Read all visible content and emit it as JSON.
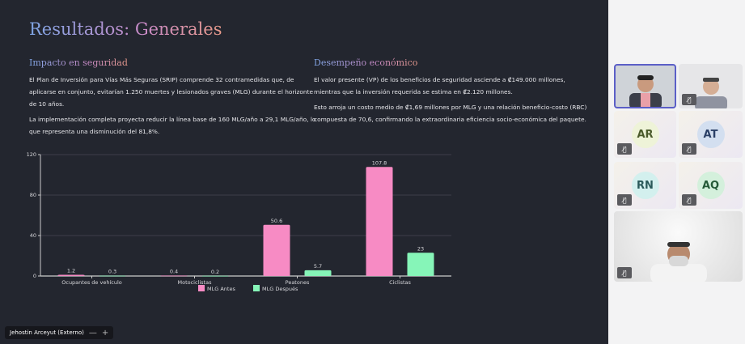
{
  "slide": {
    "title": "Resultados: Generales",
    "left": {
      "heading": "Impacto en seguridad",
      "p1": "El Plan de Inversión para Vías Más Seguras (SRIP) comprende 32 contramedidas que, de aplicarse en conjunto, evitarían 1.250 muertes y lesionados graves (MLG) durante el horizonte de 10 años.",
      "p2": "La implementación completa proyecta reducir la línea base de 160 MLG/año a 29,1 MLG/año, lo que representa una disminución del 81,8%."
    },
    "right": {
      "heading": "Desempeño económico",
      "p1": "El valor presente (VP) de los beneficios de seguridad asciende a ₡149.000 millones, mientras que la inversión requerida se estima en ₡2.120 millones.",
      "p2": "Esto arroja un costo medio de ₡1,69 millones por MLG y una relación beneficio-costo (RBC) compuesta de 70,6, confirmando la extraordinaria eficiencia socio-económica del paquete."
    }
  },
  "chart_data": {
    "type": "bar",
    "categories": [
      "Ocupantes de vehículo",
      "Motociclistas",
      "Peatones",
      "Ciclistas"
    ],
    "series": [
      {
        "name": "MLG Antes",
        "values": [
          1.2,
          0.4,
          50.6,
          107.8
        ],
        "color": "#f78bc4"
      },
      {
        "name": "MLG Después",
        "values": [
          0.3,
          0.2,
          5.7,
          23
        ],
        "color": "#86f5b8"
      }
    ],
    "yticks": [
      0,
      40,
      80,
      120
    ],
    "ylim": [
      0,
      120
    ],
    "grid": true,
    "legend": "bottom"
  },
  "meeting": {
    "presenter_name": "Jehostin Arceyut (Externo)",
    "minus": "—",
    "plus": "+",
    "participants": [
      {
        "initials": "AR",
        "bg": "#eef3d8",
        "fg": "#4a5a2a"
      },
      {
        "initials": "AT",
        "bg": "#d3dff0",
        "fg": "#2a3f66"
      },
      {
        "initials": "RN",
        "bg": "#d3f0ee",
        "fg": "#2a5a5a"
      },
      {
        "initials": "AQ",
        "bg": "#d4f0dc",
        "fg": "#255a38"
      }
    ],
    "mic_icon": "mic-off-icon"
  }
}
